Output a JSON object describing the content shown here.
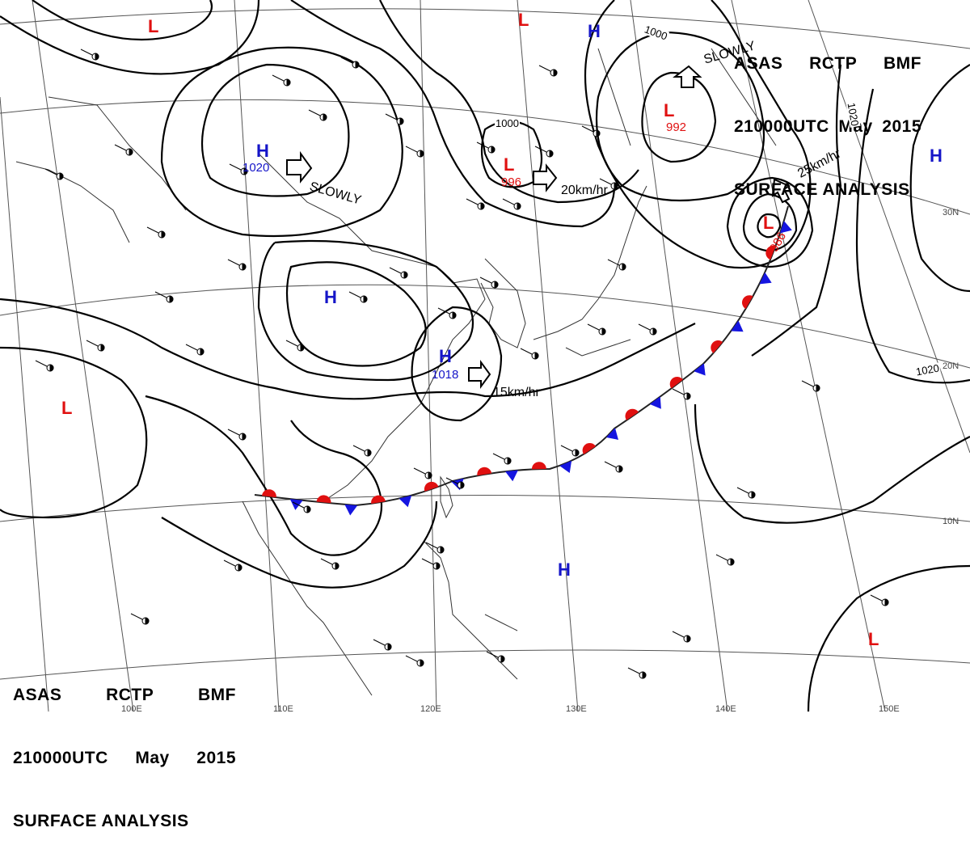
{
  "header": {
    "line1": [
      "ASAS",
      "RCTP",
      "BMF"
    ],
    "line2": [
      "210000UTC",
      "May",
      "2015"
    ],
    "line3": "SURFACE ANALYSIS"
  },
  "footer": {
    "line1": [
      "ASAS",
      "RCTP",
      "BMF"
    ],
    "line2": [
      "210000UTC",
      "May",
      "2015"
    ],
    "line3": "SURFACE ANALYSIS"
  },
  "longitude_labels": [
    "100E",
    "110E",
    "120E",
    "130E",
    "140E",
    "150E"
  ],
  "latitude_labels": [
    "30N",
    "20N",
    "10N"
  ],
  "isobar_labels": [
    "1000",
    "1000",
    "1020",
    "1020"
  ],
  "pressure_systems": [
    {
      "type": "L",
      "value": ""
    },
    {
      "type": "L",
      "value": ""
    },
    {
      "type": "H",
      "value": ""
    },
    {
      "type": "L",
      "value": "992"
    },
    {
      "type": "H",
      "value": "1020"
    },
    {
      "type": "L",
      "value": "996"
    },
    {
      "type": "H",
      "value": ""
    },
    {
      "type": "L",
      "value": "986"
    },
    {
      "type": "H",
      "value": ""
    },
    {
      "type": "H",
      "value": "1018"
    },
    {
      "type": "L",
      "value": ""
    },
    {
      "type": "H",
      "value": ""
    },
    {
      "type": "L",
      "value": ""
    }
  ],
  "motions": [
    "SLOWLY",
    "20km/hr",
    "SLOWLY",
    "25km/hr",
    "15km/hr"
  ],
  "colors": {
    "high": "#1515c8",
    "low": "#e01010",
    "cold_front": "#1515e0",
    "warm_front": "#e01010",
    "isobar": "#000000",
    "grid": "#555555",
    "coast": "#333333"
  }
}
